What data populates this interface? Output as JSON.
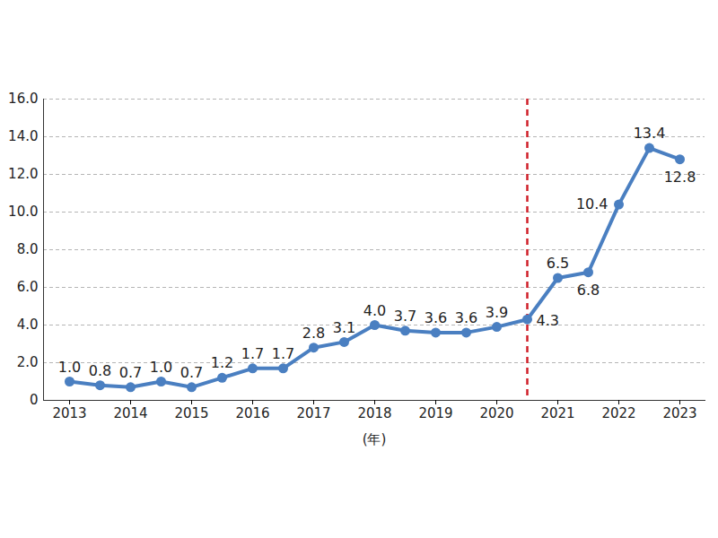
{
  "chart_data": {
    "type": "line",
    "categories": [
      "2013",
      null,
      "2014",
      null,
      "2015",
      null,
      "2016",
      null,
      "2017",
      null,
      "2018",
      null,
      "2019",
      null,
      "2020",
      null,
      "2021",
      null,
      "2022",
      null,
      "2023"
    ],
    "values": [
      1.0,
      0.8,
      0.7,
      1.0,
      0.7,
      1.2,
      1.7,
      1.7,
      2.8,
      3.1,
      4.0,
      3.7,
      3.6,
      3.6,
      3.9,
      4.3,
      6.5,
      6.8,
      10.4,
      13.4,
      12.8
    ],
    "value_labels": [
      "1.0",
      "0.8",
      "0.7",
      "1.0",
      "0.7",
      "1.2",
      "1.7",
      "1.7",
      "2.8",
      "3.1",
      "4.0",
      "3.7",
      "3.6",
      "3.6",
      "3.9",
      "4.3",
      "6.5",
      "6.8",
      "10.4",
      "13.4",
      "12.8"
    ],
    "x_label": "(年)",
    "ylim": [
      0,
      16
    ],
    "yticks": [
      0,
      {
        "value": 2,
        "label": "2.0"
      },
      {
        "value": 4,
        "label": "4.0"
      },
      {
        "value": 6,
        "label": "6.0"
      },
      {
        "value": 8,
        "label": "8.0"
      },
      {
        "value": 10,
        "label": "10.0"
      },
      {
        "value": 12,
        "label": "12.0"
      },
      {
        "value": 14,
        "label": "14.0"
      },
      {
        "value": 16,
        "label": "16.0"
      }
    ],
    "color": "#4a7fc1",
    "marker": "circle",
    "grid": true,
    "data_labels": true,
    "vline": {
      "position": 15,
      "color": "#d0202a",
      "line_style": "dashed"
    }
  }
}
